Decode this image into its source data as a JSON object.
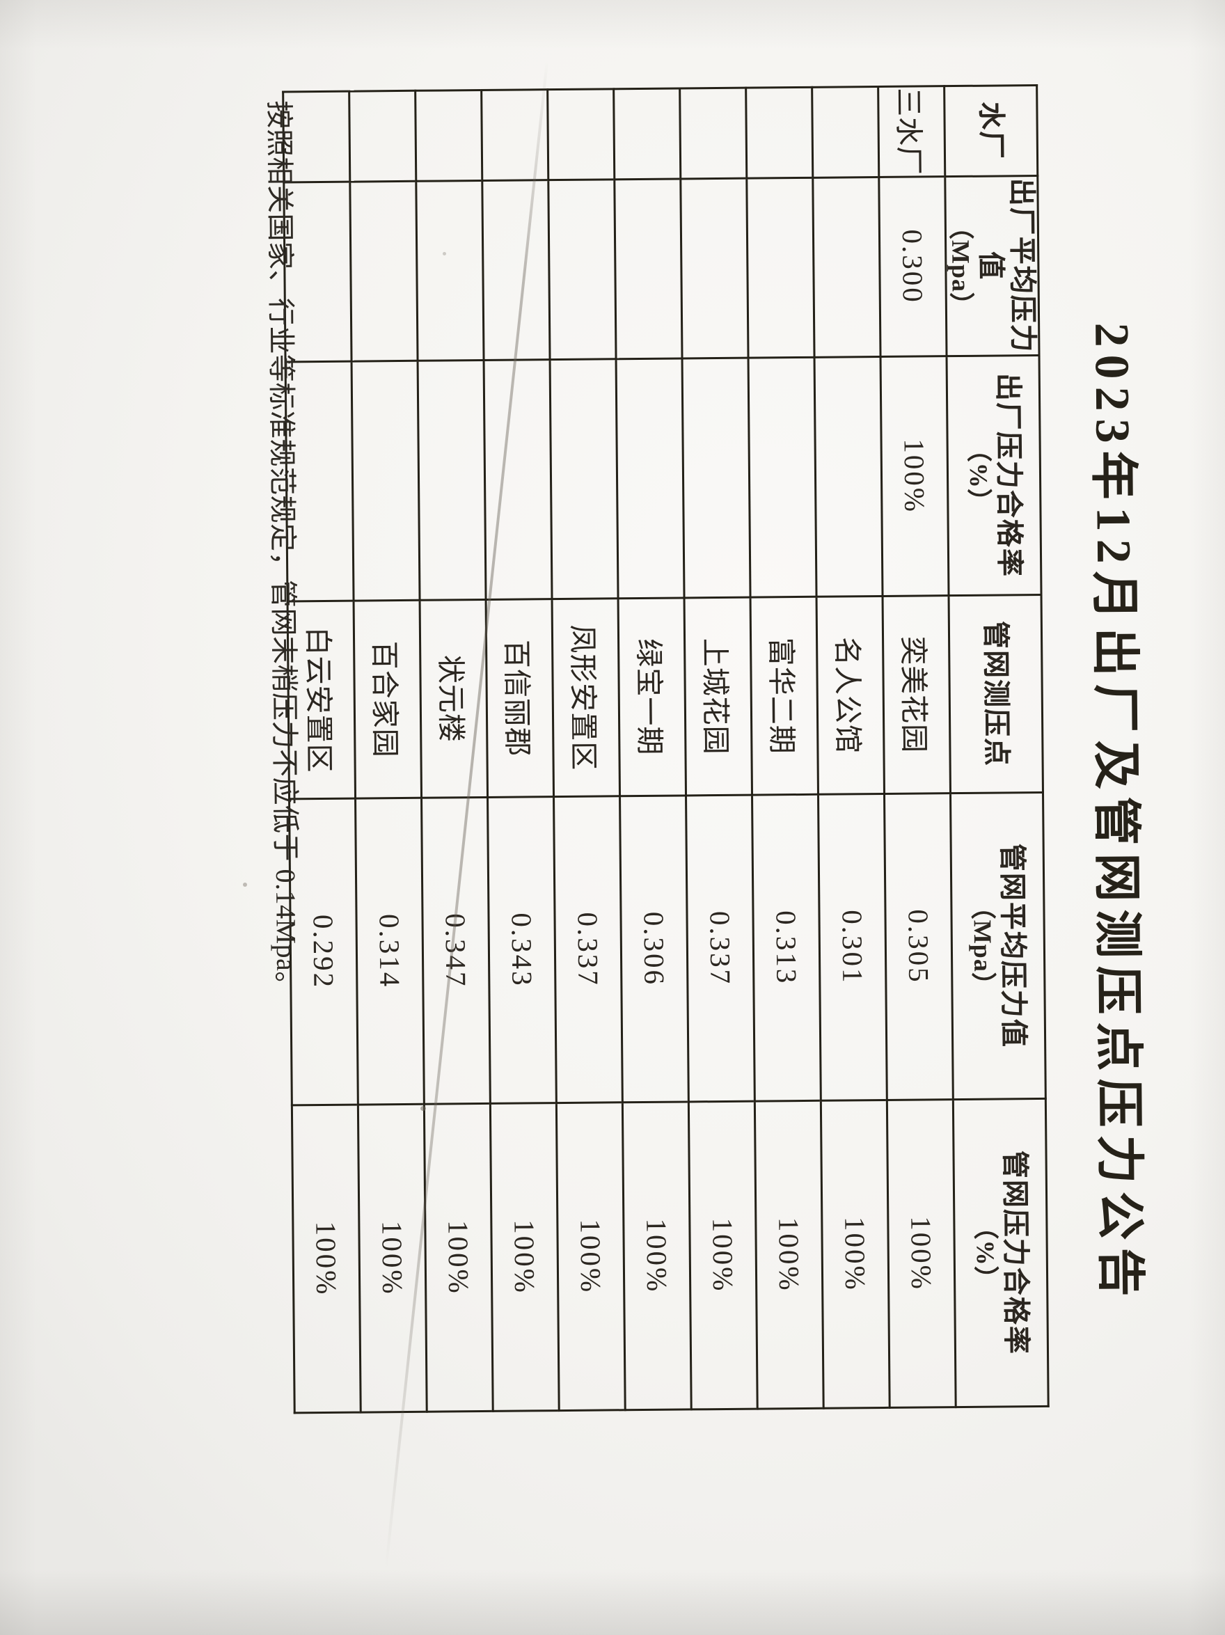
{
  "title": "2023年12月出厂及管网测压点压力公告",
  "table": {
    "headers": [
      {
        "line1": "水厂",
        "line2": ""
      },
      {
        "line1": "出厂平均压力值",
        "line2": "（Mpa）"
      },
      {
        "line1": "出厂压力合格率",
        "line2": "（%）"
      },
      {
        "line1": "管网测压点",
        "line2": ""
      },
      {
        "line1": "管网平均压力值",
        "line2": "（Mpa）"
      },
      {
        "line1": "管网压力合格率",
        "line2": "（%）"
      }
    ],
    "rows": [
      [
        "三水厂",
        "0.300",
        "100%",
        "奕美花园",
        "0.305",
        "100%"
      ],
      [
        "",
        "",
        "",
        "名人公馆",
        "0.301",
        "100%"
      ],
      [
        "",
        "",
        "",
        "富华二期",
        "0.313",
        "100%"
      ],
      [
        "",
        "",
        "",
        "上城花园",
        "0.337",
        "100%"
      ],
      [
        "",
        "",
        "",
        "绿宝一期",
        "0.306",
        "100%"
      ],
      [
        "",
        "",
        "",
        "凤形安置区",
        "0.337",
        "100%"
      ],
      [
        "",
        "",
        "",
        "百信丽郡",
        "0.343",
        "100%"
      ],
      [
        "",
        "",
        "",
        "状元楼",
        "0.347",
        "100%"
      ],
      [
        "",
        "",
        "",
        "百合家园",
        "0.314",
        "100%"
      ],
      [
        "",
        "",
        "",
        "白云安置区",
        "0.292",
        "100%"
      ]
    ]
  },
  "footnote": "按照相关国家、行业等标准规范规定，管网末梢压力不应低于 0.14Mpa。",
  "colors": {
    "ink": "#2b2620",
    "border": "#242118",
    "paper": "#f5f4f1"
  }
}
